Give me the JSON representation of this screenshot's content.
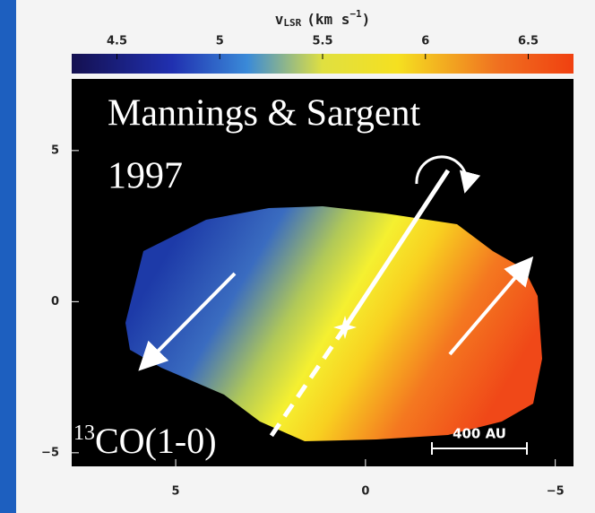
{
  "chart_data": {
    "type": "velocity-map",
    "colorbar_label": {
      "symbol": "v",
      "subscript": "LSR",
      "unit": "(km s",
      "exponent": "−1",
      "close": ")"
    },
    "clim": [
      4.28,
      6.72
    ],
    "cticks": [
      4.5,
      5,
      5.5,
      6,
      6.5
    ],
    "xlim": [
      7.74,
      -5.48
    ],
    "xticks": [
      5,
      0,
      {
        "value": -5,
        "label": "−5"
      }
    ],
    "ylim": [
      -5.45,
      7.37
    ],
    "yticks": [
      5,
      0,
      {
        "value": -5,
        "label": "−5"
      }
    ],
    "annotations": {
      "reference": "Mannings & Sargent",
      "year": "1997",
      "isotope": "13",
      "line": "CO(1-0)",
      "scale_bar": "400 AU"
    }
  }
}
